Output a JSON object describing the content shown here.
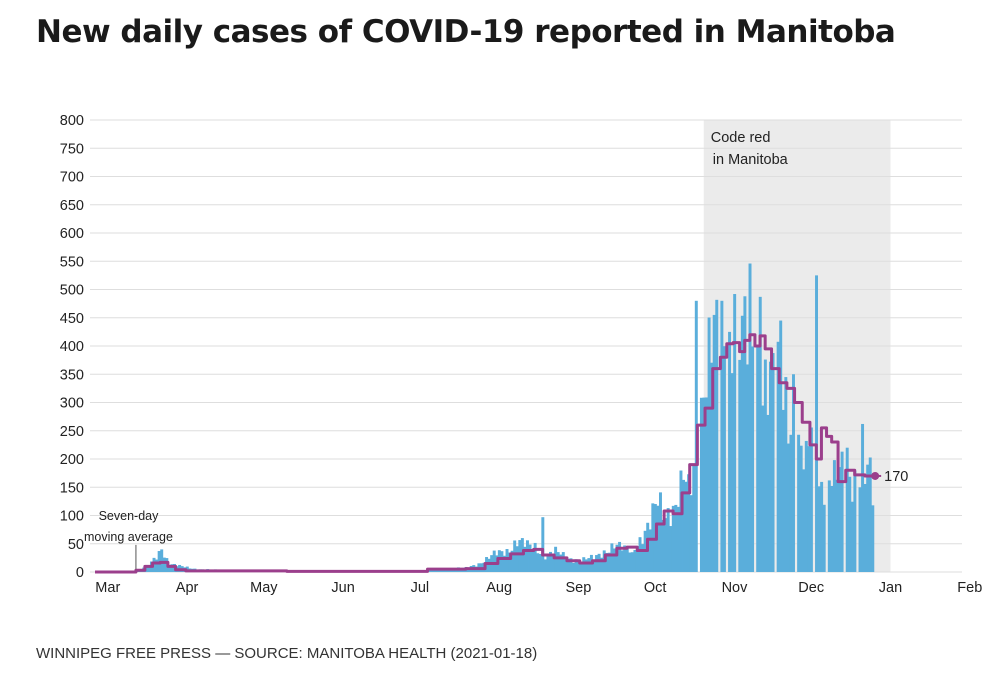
{
  "header": {
    "title": "New daily cases of COVID-19 reported in Manitoba"
  },
  "footer": {
    "source": "WINNIPEG FREE PRESS — SOURCE: MANITOBA HEALTH (2021-01-18)"
  },
  "colors": {
    "bars": "#5aaedb",
    "line": "#9b3f8c",
    "shade": "#ebebeb",
    "grid": "#dedede"
  },
  "chart_data": {
    "type": "bar",
    "title": "New daily cases of COVID-19 reported in Manitoba",
    "xlabel": "",
    "ylabel": "",
    "ylim": [
      0,
      800
    ],
    "yticks": [
      "0",
      "50",
      "100",
      "150",
      "200",
      "250",
      "300",
      "350",
      "400",
      "450",
      "500",
      "550",
      "600",
      "650",
      "700",
      "750",
      "800"
    ],
    "xticks": [
      "Mar",
      "Apr",
      "May",
      "Jun",
      "Jul",
      "Aug",
      "Sep",
      "Oct",
      "Nov",
      "Dec",
      "Jan",
      "Feb"
    ],
    "shaded_region": {
      "start_day": 238,
      "end_day": 311,
      "label_line1": "Code red",
      "label_line2": "in Manitoba"
    },
    "moving_average_label_line1": "Seven-day",
    "moving_average_label_line2": "moving average",
    "end_label": "170",
    "day0": "2020-03-01",
    "anchors": [
      [
        0,
        0
      ],
      [
        11,
        0
      ],
      [
        14,
        2
      ],
      [
        17,
        3
      ],
      [
        20,
        10
      ],
      [
        23,
        18
      ],
      [
        26,
        40
      ],
      [
        29,
        15
      ],
      [
        33,
        10
      ],
      [
        40,
        5
      ],
      [
        50,
        3
      ],
      [
        61,
        2
      ],
      [
        75,
        1
      ],
      [
        92,
        1
      ],
      [
        105,
        1
      ],
      [
        115,
        2
      ],
      [
        122,
        1
      ],
      [
        130,
        3
      ],
      [
        138,
        6
      ],
      [
        145,
        7
      ],
      [
        150,
        15
      ],
      [
        156,
        30
      ],
      [
        161,
        38
      ],
      [
        165,
        55
      ],
      [
        169,
        45
      ],
      [
        172,
        45
      ],
      [
        176,
        30
      ],
      [
        180,
        35
      ],
      [
        185,
        25
      ],
      [
        190,
        20
      ],
      [
        195,
        25
      ],
      [
        198,
        35
      ],
      [
        203,
        45
      ],
      [
        207,
        40
      ],
      [
        210,
        45
      ],
      [
        214,
        60
      ],
      [
        217,
        80
      ],
      [
        220,
        130
      ],
      [
        223,
        110
      ],
      [
        227,
        110
      ],
      [
        230,
        155
      ],
      [
        233,
        165
      ],
      [
        236,
        270
      ],
      [
        239,
        350
      ],
      [
        242,
        380
      ],
      [
        246,
        400
      ],
      [
        250,
        420
      ],
      [
        254,
        400
      ],
      [
        257,
        390
      ],
      [
        261,
        350
      ],
      [
        265,
        330
      ],
      [
        270,
        310
      ],
      [
        274,
        240
      ],
      [
        278,
        180
      ],
      [
        280,
        250
      ],
      [
        282,
        150
      ],
      [
        286,
        175
      ],
      [
        290,
        165
      ],
      [
        293,
        175
      ],
      [
        296,
        170
      ],
      [
        300,
        175
      ],
      [
        303,
        165
      ]
    ],
    "overrides": [
      [
        23,
        25
      ],
      [
        26,
        40
      ],
      [
        175,
        97
      ],
      [
        210,
        35
      ],
      [
        232,
        173
      ],
      [
        235,
        480
      ],
      [
        242,
        455
      ],
      [
        245,
        480
      ],
      [
        248,
        425
      ],
      [
        250,
        492
      ],
      [
        254,
        488
      ],
      [
        256,
        546
      ],
      [
        258,
        465
      ],
      [
        260,
        487
      ],
      [
        268,
        445
      ],
      [
        270,
        345
      ],
      [
        273,
        350
      ],
      [
        282,
        525
      ],
      [
        286,
        328
      ],
      [
        289,
        198
      ],
      [
        294,
        220
      ],
      [
        298,
        92
      ],
      [
        300,
        262
      ],
      [
        302,
        190
      ],
      [
        304,
        118
      ]
    ],
    "zeros": [
      236,
      244,
      247,
      251,
      258,
      266,
      274,
      281,
      286,
      293,
      298
    ],
    "moving_average": [
      [
        0,
        0
      ],
      [
        14,
        0
      ],
      [
        18,
        3
      ],
      [
        21,
        10
      ],
      [
        24,
        16
      ],
      [
        27,
        17
      ],
      [
        30,
        10
      ],
      [
        33,
        4
      ],
      [
        38,
        2
      ],
      [
        60,
        2
      ],
      [
        90,
        1
      ],
      [
        120,
        1
      ],
      [
        140,
        5
      ],
      [
        150,
        6
      ],
      [
        155,
        15
      ],
      [
        160,
        24
      ],
      [
        165,
        32
      ],
      [
        170,
        38
      ],
      [
        173,
        40
      ],
      [
        177,
        30
      ],
      [
        182,
        25
      ],
      [
        187,
        20
      ],
      [
        192,
        16
      ],
      [
        197,
        20
      ],
      [
        202,
        30
      ],
      [
        206,
        42
      ],
      [
        210,
        44
      ],
      [
        214,
        38
      ],
      [
        218,
        58
      ],
      [
        221,
        85
      ],
      [
        224,
        108
      ],
      [
        228,
        103
      ],
      [
        231,
        140
      ],
      [
        234,
        190
      ],
      [
        237,
        260
      ],
      [
        240,
        290
      ],
      [
        243,
        360
      ],
      [
        246,
        380
      ],
      [
        248,
        404
      ],
      [
        251,
        406
      ],
      [
        253,
        390
      ],
      [
        255,
        410
      ],
      [
        257,
        420
      ],
      [
        259,
        400
      ],
      [
        261,
        418
      ],
      [
        263,
        395
      ],
      [
        266,
        360
      ],
      [
        269,
        335
      ],
      [
        272,
        325
      ],
      [
        275,
        300
      ],
      [
        278,
        265
      ],
      [
        281,
        225
      ],
      [
        283,
        200
      ],
      [
        285,
        255
      ],
      [
        287,
        240
      ],
      [
        289,
        230
      ],
      [
        292,
        160
      ],
      [
        295,
        180
      ],
      [
        299,
        172
      ],
      [
        303,
        170
      ],
      [
        305,
        170
      ]
    ]
  }
}
